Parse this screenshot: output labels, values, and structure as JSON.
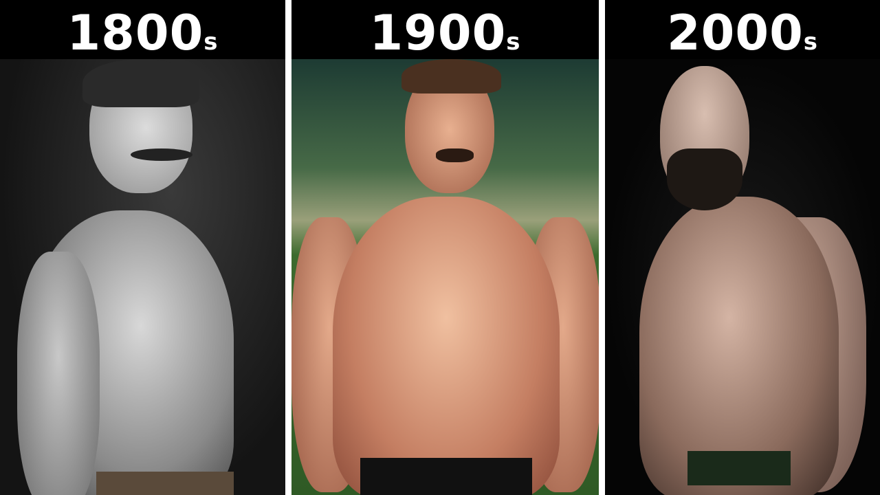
{
  "panels": [
    {
      "era": "1800",
      "suffix": "s"
    },
    {
      "era": "1900",
      "suffix": "s"
    },
    {
      "era": "2000",
      "suffix": "s"
    }
  ],
  "colors": {
    "header_bg": "#000000",
    "label_text": "#ffffff",
    "frame": "#ffffff"
  }
}
